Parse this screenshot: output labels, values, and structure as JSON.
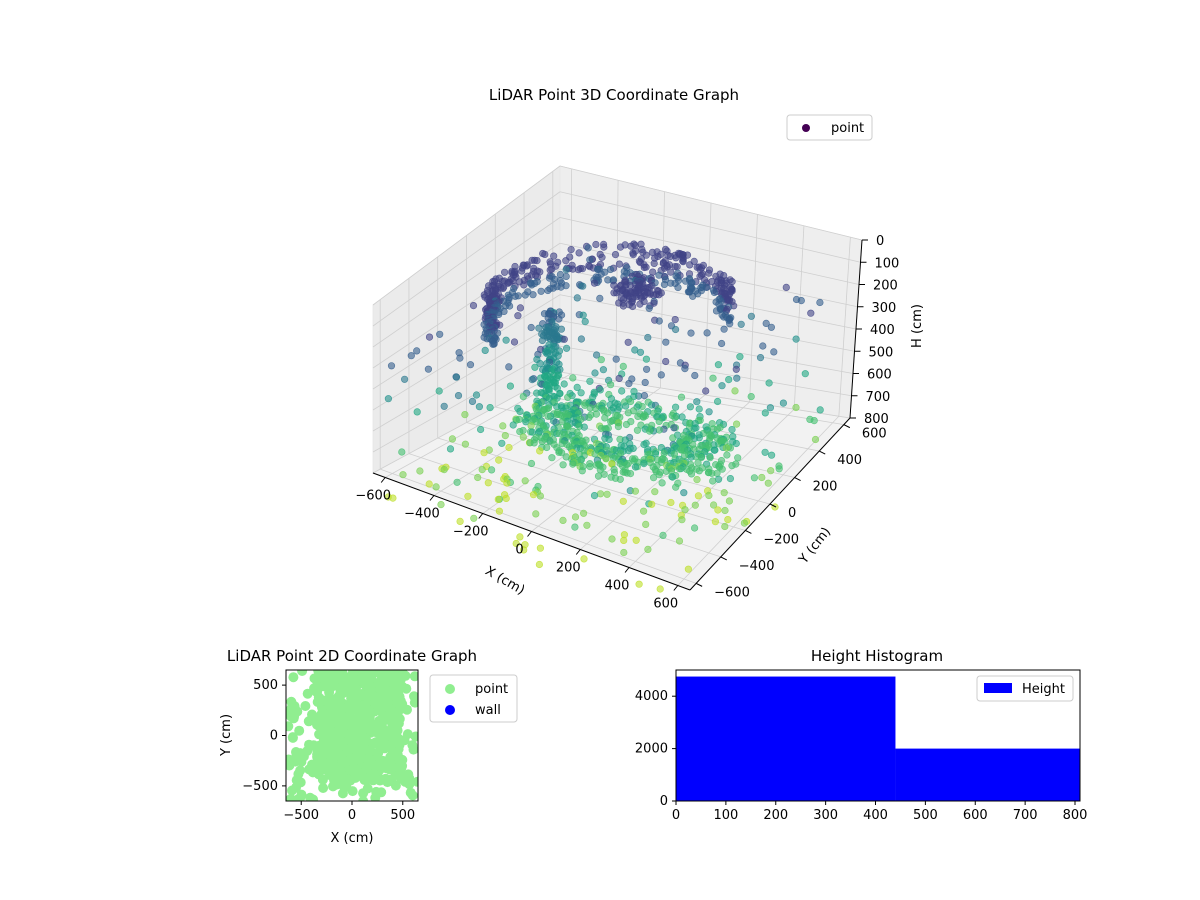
{
  "chart_data": [
    {
      "type": "scatter",
      "subtype": "3d",
      "title": "LiDAR Point 3D Coordinate Graph",
      "xlabel": "X (cm)",
      "ylabel": "Y (cm)",
      "zlabel": "H (cm)",
      "xlim": [
        -650,
        650
      ],
      "ylim": [
        -650,
        650
      ],
      "zlim": [
        0,
        800
      ],
      "z_inverted": true,
      "x_ticks": [
        "−600",
        "−400",
        "−200",
        "0",
        "200",
        "400",
        "600"
      ],
      "y_ticks": [
        "−600",
        "−400",
        "−200",
        "0",
        "200",
        "400",
        "600"
      ],
      "z_ticks": [
        "0",
        "100",
        "200",
        "300",
        "400",
        "500",
        "600",
        "700",
        "800"
      ],
      "legend": [
        {
          "name": "point",
          "color": "#440154"
        }
      ],
      "legend_position": "upper-right",
      "colormap": "viridis",
      "grid": true
    },
    {
      "type": "scatter",
      "title": "LiDAR Point 2D Coordinate Graph",
      "xlabel": "X (cm)",
      "ylabel": "Y (cm)",
      "xlim": [
        -650,
        650
      ],
      "ylim": [
        -650,
        650
      ],
      "x_ticks": [
        "−500",
        "0",
        "500"
      ],
      "y_ticks": [
        "−500",
        "0",
        "500"
      ],
      "legend": [
        {
          "name": "point",
          "color": "#90ee90"
        },
        {
          "name": "wall",
          "color": "#0000ff"
        }
      ],
      "legend_position": "outside-right",
      "grid": false
    },
    {
      "type": "bar",
      "subtype": "histogram",
      "title": "Height Histogram",
      "bins": [
        [
          0,
          440
        ],
        [
          440,
          810
        ]
      ],
      "values": [
        4750,
        2000
      ],
      "xlim": [
        0,
        810
      ],
      "ylim": [
        0,
        5000
      ],
      "x_ticks": [
        "0",
        "100",
        "200",
        "300",
        "400",
        "500",
        "600",
        "700",
        "800"
      ],
      "y_ticks": [
        "0",
        "2000",
        "4000"
      ],
      "legend": [
        {
          "name": "Height",
          "color": "#0000ff"
        }
      ],
      "legend_position": "upper-right",
      "color": "#0000ff"
    }
  ]
}
